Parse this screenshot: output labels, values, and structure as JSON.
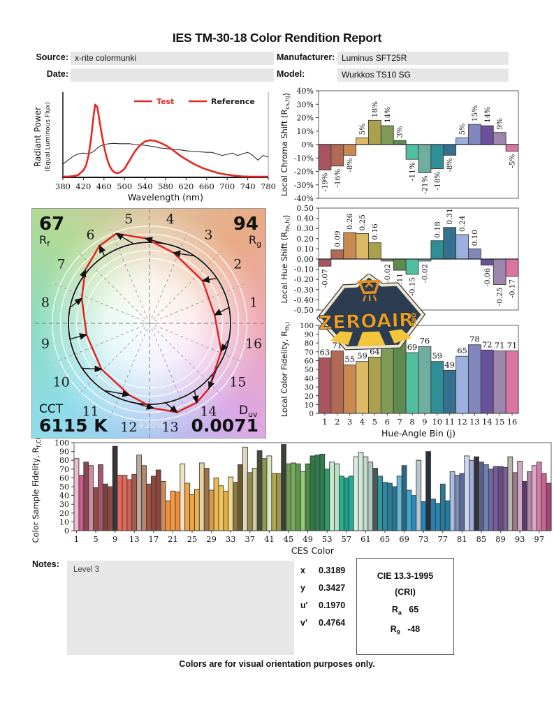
{
  "page": {
    "title": "IES TM-30-18 Color Rendition Report",
    "footer": "Colors are for visual orientation purposes only."
  },
  "header": {
    "source_label": "Source:",
    "source_value": "x-rite colormunki",
    "date_label": "Date:",
    "date_value": "",
    "manufacturer_label": "Manufacturer:",
    "manufacturer_value": "Luminus SFT25R",
    "model_label": "Model:",
    "model_value": "Wurkkos TS10 SG"
  },
  "logo": {
    "text": "ZEROAIR",
    "suffix": "ORG"
  },
  "notes": {
    "label": "Notes:",
    "value": "Level 3"
  },
  "chromaticity": {
    "rows": [
      {
        "label": "x",
        "value": "0.3189"
      },
      {
        "label": "y",
        "value": "0.3427"
      },
      {
        "label": "u'",
        "value": "0.1970"
      },
      {
        "label": "v'",
        "value": "0.4764"
      }
    ]
  },
  "cri_box": {
    "title": "CIE 13.3-1995",
    "subtitle": "(CRI)",
    "rows": [
      {
        "label": "R",
        "sub": "a",
        "value": "65"
      },
      {
        "label": "R",
        "sub": "9",
        "value": "-48"
      }
    ]
  },
  "cvg": {
    "rf_value": "67",
    "rf_label": "R",
    "rf_sub": "f",
    "rg_value": "94",
    "rg_label": "R",
    "rg_sub": "g",
    "cct_label": "CCT",
    "cct_value": "6115 K",
    "duv_label": "D",
    "duv_sub": "uv",
    "duv_value": "0.0071",
    "ring_labels": [
      "-20%",
      "+20%"
    ],
    "bin_labels": [
      "1",
      "2",
      "3",
      "4",
      "5",
      "6",
      "7",
      "8",
      "9",
      "10",
      "11",
      "12",
      "13",
      "14",
      "15",
      "16"
    ],
    "test_polygon": [
      {
        "r": 0.81,
        "da": -4
      },
      {
        "r": 0.84,
        "da": 5
      },
      {
        "r": 0.92,
        "da": 15
      },
      {
        "r": 1.05,
        "da": 14
      },
      {
        "r": 1.18,
        "da": 9
      },
      {
        "r": 1.14,
        "da": -1
      },
      {
        "r": 1.03,
        "da": -6
      },
      {
        "r": 0.89,
        "da": -9
      },
      {
        "r": 0.79,
        "da": -1
      },
      {
        "r": 0.82,
        "da": 10
      },
      {
        "r": 0.92,
        "da": 18
      },
      {
        "r": 1.05,
        "da": 14
      },
      {
        "r": 1.15,
        "da": 6
      },
      {
        "r": 1.14,
        "da": -3
      },
      {
        "r": 1.09,
        "da": -14
      },
      {
        "r": 0.95,
        "da": -10
      }
    ]
  },
  "bin_colors": [
    "#a85560",
    "#b06a55",
    "#c88a50",
    "#ddb966",
    "#aaa04e",
    "#7f9a55",
    "#5e8a50",
    "#4fbfa0",
    "#6fae9e",
    "#2e8f96",
    "#35708e",
    "#9cb0e0",
    "#8186bd",
    "#6a519b",
    "#9d85ae",
    "#d875a0"
  ],
  "chart_data": [
    {
      "id": "spd",
      "type": "line",
      "xlabel": "Wavelength (nm)",
      "ylabel": "Radiant Power",
      "ylabel2": "(Equal Luminous Flux)",
      "x_ticks": [
        380,
        420,
        460,
        500,
        540,
        580,
        620,
        660,
        700,
        740,
        780
      ],
      "xlim": [
        380,
        780
      ],
      "ylim": [
        0,
        1
      ],
      "series": [
        {
          "name": "Test",
          "color": "#e62721",
          "x": [
            380,
            390,
            400,
            410,
            420,
            425,
            430,
            435,
            440,
            443,
            447,
            450,
            455,
            460,
            465,
            470,
            475,
            480,
            485,
            490,
            495,
            500,
            510,
            520,
            530,
            540,
            550,
            560,
            570,
            580,
            590,
            600,
            610,
            620,
            630,
            640,
            650,
            660,
            670,
            680,
            690,
            700,
            710,
            720,
            730,
            745,
            780
          ],
          "y": [
            0.01,
            0.01,
            0.015,
            0.03,
            0.09,
            0.15,
            0.28,
            0.5,
            0.8,
            0.93,
            0.9,
            0.78,
            0.58,
            0.4,
            0.26,
            0.16,
            0.1,
            0.065,
            0.055,
            0.06,
            0.08,
            0.11,
            0.22,
            0.33,
            0.41,
            0.46,
            0.475,
            0.465,
            0.44,
            0.41,
            0.37,
            0.32,
            0.27,
            0.23,
            0.19,
            0.155,
            0.125,
            0.1,
            0.08,
            0.06,
            0.045,
            0.035,
            0.025,
            0.018,
            0.012,
            0.008,
            0.008
          ]
        },
        {
          "name": "Reference",
          "color": "#2a2a2a",
          "x": [
            380,
            390,
            400,
            410,
            420,
            430,
            440,
            450,
            460,
            470,
            480,
            490,
            500,
            510,
            520,
            530,
            540,
            550,
            560,
            570,
            580,
            590,
            600,
            610,
            620,
            630,
            640,
            650,
            660,
            670,
            680,
            690,
            700,
            710,
            720,
            730,
            740,
            750,
            760,
            770,
            780
          ],
          "y": [
            0.17,
            0.22,
            0.27,
            0.3,
            0.31,
            0.3,
            0.33,
            0.39,
            0.42,
            0.43,
            0.435,
            0.43,
            0.43,
            0.43,
            0.42,
            0.415,
            0.41,
            0.4,
            0.39,
            0.375,
            0.37,
            0.36,
            0.355,
            0.35,
            0.34,
            0.335,
            0.33,
            0.325,
            0.32,
            0.32,
            0.3,
            0.28,
            0.295,
            0.31,
            0.28,
            0.3,
            0.32,
            0.28,
            0.22,
            0.28,
            0.26
          ]
        }
      ]
    },
    {
      "id": "chroma_shift",
      "type": "bar",
      "ylabel_parts": [
        [
          "t",
          "Local Chroma Shift (R"
        ],
        [
          "s",
          "cs,hj"
        ],
        [
          "t",
          ")"
        ]
      ],
      "ylim": [
        -40,
        40
      ],
      "y_tick_values": [
        40,
        30,
        20,
        10,
        0,
        -10,
        -20,
        -30,
        -40
      ],
      "y_tick_labels": [
        "40%",
        "30%",
        "20%",
        "10%",
        "0%",
        "-10%",
        "-20%",
        "-30%",
        "-40%"
      ],
      "values": [
        -19,
        -16,
        -8,
        5,
        18,
        14,
        3,
        -11,
        -21,
        -18,
        -8,
        5,
        15,
        14,
        9,
        -5
      ],
      "labels": [
        "-19%",
        "-16%",
        "-8%",
        "5%",
        "18%",
        "14%",
        "3%",
        "-11%",
        "-21%",
        "-18%",
        "-8%",
        "5%",
        "15%",
        "14%",
        "9%",
        "-5%"
      ]
    },
    {
      "id": "hue_shift",
      "type": "bar",
      "ylabel_parts": [
        [
          "t",
          "Local Hue Shift (R"
        ],
        [
          "s",
          "hs,hj"
        ],
        [
          "t",
          ")"
        ]
      ],
      "ylim": [
        -0.5,
        0.5
      ],
      "y_tick_values": [
        0.5,
        0.4,
        0.3,
        0.2,
        0.1,
        0,
        -0.1,
        -0.2,
        -0.3,
        -0.4,
        -0.5
      ],
      "y_tick_labels": [
        "0.50",
        "0.40",
        "0.30",
        "0.20",
        "0.10",
        "0.00",
        "-0.10",
        "-0.20",
        "-0.30",
        "-0.40",
        "-0.50"
      ],
      "values": [
        -0.07,
        0.09,
        0.26,
        0.25,
        0.16,
        -0.02,
        -0.11,
        -0.15,
        -0.02,
        0.18,
        0.31,
        0.24,
        0.1,
        -0.06,
        -0.25,
        -0.17
      ],
      "labels": [
        "-0.07",
        "0.09",
        "0.26",
        "0.25",
        "0.16",
        "-0.02",
        "-0.11",
        "-0.15",
        "-0.02",
        "0.18",
        "0.31",
        "0.24",
        "0.10",
        "-0.06",
        "-0.25",
        "-0.17"
      ]
    },
    {
      "id": "local_fidelity",
      "type": "bar",
      "ylabel_parts": [
        [
          "t",
          "Local Color Fidelity, R"
        ],
        [
          "s",
          "fh,i"
        ]
      ],
      "xlabel": "Hue-Angle Bin (j)",
      "ylim": [
        0,
        100
      ],
      "y_tick_values": [
        100,
        90,
        80,
        70,
        60,
        50,
        40,
        30,
        20,
        10,
        0
      ],
      "y_tick_labels": [
        "100",
        "90",
        "80",
        "70",
        "60",
        "50",
        "40",
        "30",
        "20",
        "10",
        "0"
      ],
      "x_tick_labels": [
        "1",
        "2",
        "3",
        "4",
        "5",
        "6",
        "7",
        "8",
        "9",
        "10",
        "11",
        "12",
        "13",
        "14",
        "15",
        "16"
      ],
      "values": [
        63,
        71,
        55,
        59,
        64,
        78,
        83,
        69,
        76,
        59,
        49,
        65,
        78,
        72,
        71,
        71
      ],
      "labels": [
        "63",
        "71",
        "55",
        "59",
        "64",
        "78",
        "83",
        "69",
        "76",
        "59",
        "49",
        "65",
        "78",
        "72",
        "71",
        "71"
      ]
    },
    {
      "id": "ces_fidelity",
      "type": "bar",
      "ylabel_parts": [
        [
          "t",
          "Color Sample Fidelity, R"
        ],
        [
          "s",
          "f,CESi"
        ]
      ],
      "xlabel": "CES Color",
      "ylim": [
        0,
        100
      ],
      "y_tick_values": [
        100,
        90,
        80,
        70,
        60,
        50,
        40,
        30,
        20,
        10,
        0
      ],
      "y_tick_labels": [
        "100",
        "90",
        "80",
        "70",
        "60",
        "50",
        "40",
        "30",
        "20",
        "10",
        "0"
      ],
      "x_tick_labels": [
        "1",
        "5",
        "9",
        "13",
        "17",
        "21",
        "25",
        "29",
        "33",
        "37",
        "41",
        "45",
        "49",
        "53",
        "57",
        "61",
        "65",
        "69",
        "73",
        "77",
        "81",
        "85",
        "89",
        "93",
        "97"
      ],
      "x_tick_indices": [
        0,
        4,
        8,
        12,
        16,
        20,
        24,
        28,
        32,
        36,
        40,
        44,
        48,
        52,
        56,
        60,
        64,
        68,
        72,
        76,
        80,
        84,
        88,
        92,
        96
      ],
      "values": [
        82,
        63,
        78,
        74,
        49,
        75,
        53,
        50,
        96,
        63,
        63,
        58,
        64,
        86,
        74,
        53,
        62,
        69,
        56,
        34,
        45,
        44,
        76,
        54,
        41,
        47,
        77,
        71,
        46,
        60,
        51,
        45,
        61,
        55,
        75,
        95,
        66,
        71,
        91,
        82,
        85,
        65,
        65,
        98,
        76,
        77,
        76,
        67,
        76,
        85,
        86,
        87,
        70,
        78,
        76,
        62,
        60,
        62,
        84,
        89,
        84,
        78,
        71,
        62,
        55,
        54,
        50,
        62,
        74,
        46,
        40,
        80,
        33,
        90,
        36,
        31,
        53,
        34,
        67,
        63,
        65,
        85,
        80,
        84,
        78,
        75,
        70,
        73,
        73,
        72,
        84,
        66,
        79,
        56,
        67,
        74,
        78,
        65,
        54
      ],
      "colors": [
        "#f0bcd0",
        "#ca5a8a",
        "#8e4450",
        "#cf8ba0",
        "#8e4a44",
        "#a85570",
        "#7c403c",
        "#8e4a42",
        "#3a3438",
        "#e5685a",
        "#e06a55",
        "#cf6054",
        "#a65c48",
        "#c0aaa2",
        "#b2876a",
        "#a5503f",
        "#8c4a3c",
        "#8a4540",
        "#cc8a5a",
        "#f0923a",
        "#f59a42",
        "#ef8c3a",
        "#f2e2bf",
        "#f5a34a",
        "#efa63f",
        "#e7b34a",
        "#ead2a2",
        "#9c7446",
        "#d79a4e",
        "#e7bb4e",
        "#efc75a",
        "#dfb042",
        "#f0d88e",
        "#8a7a40",
        "#6a5a34",
        "#ded8be",
        "#958a4e",
        "#c7cc9a",
        "#49493a",
        "#8a9a4e",
        "#dde8c6",
        "#b0a84a",
        "#9a9a4e",
        "#3a3f37",
        "#6a9a54",
        "#7aa85e",
        "#5a9a4e",
        "#9cc878",
        "#4a8a48",
        "#2f7a44",
        "#2e7d4e",
        "#2e7d4e",
        "#29a069",
        "#c7e8cf",
        "#b7e0c7",
        "#2fae8b",
        "#19a087",
        "#28a897",
        "#d8ecdf",
        "#cfe8db",
        "#c0d8c7",
        "#afc7bf",
        "#4a5a54",
        "#2f98a7",
        "#2a8a9f",
        "#287e97",
        "#2a748f",
        "#6ab8d7",
        "#27697e",
        "#3fa8cf",
        "#2f88b7",
        "#b7c7cf",
        "#1f88b7",
        "#27323f",
        "#2f80af",
        "#2788b7",
        "#2a7a98",
        "#1f7ca7",
        "#a7bfdf",
        "#7a8aaf",
        "#5a6a99",
        "#cfd7ee",
        "#a7aedd",
        "#33333a",
        "#5a6288",
        "#7080b4",
        "#6a6a9f",
        "#7a5a9a",
        "#6a4a87",
        "#7a5f93",
        "#b7b7af",
        "#9a7888",
        "#cfa7c7",
        "#5c3a6a",
        "#af87a7",
        "#dfa7c7",
        "#d77aa7",
        "#c7648b",
        "#a7457b"
      ]
    }
  ]
}
